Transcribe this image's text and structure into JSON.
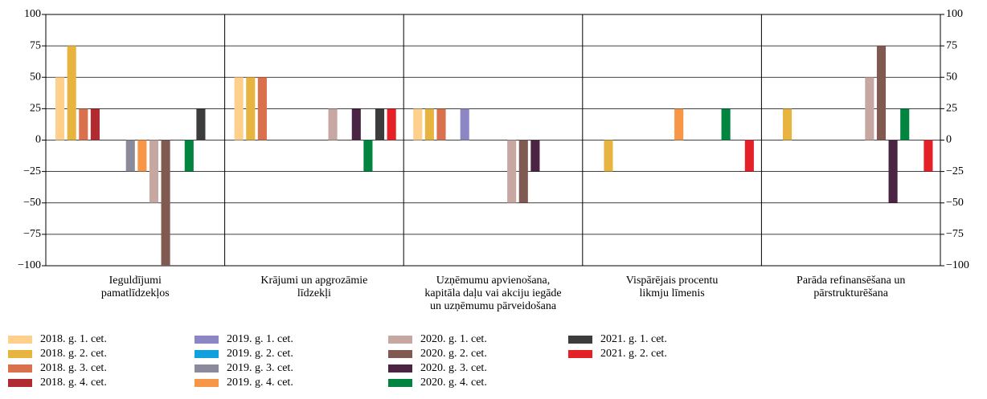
{
  "chart_data": {
    "type": "bar",
    "categories": [
      "Ieguldījumi\npamatlīdzekļos",
      "Krājumi un apgrozāmie\nlīdzekļi",
      "Uzņēmumu apvienošana,\nkapitāla daļu vai akciju iegāde\nun uzņēmumu pārveidošana",
      "Vispārējais procentu\nlikmju līmenis",
      "Parāda refinansēšana un\npārstrukturēšana"
    ],
    "series": [
      {
        "name": "2018. g. 1. cet.",
        "color": "#ffd08c",
        "values": [
          50,
          50,
          25,
          0,
          0
        ]
      },
      {
        "name": "2018. g. 2. cet.",
        "color": "#e8b440",
        "values": [
          75,
          50,
          25,
          -25,
          25
        ]
      },
      {
        "name": "2018. g. 3. cet.",
        "color": "#d8714c",
        "values": [
          25,
          50,
          25,
          0,
          0
        ]
      },
      {
        "name": "2018. g. 4. cet.",
        "color": "#b02a30",
        "values": [
          25,
          0,
          0,
          0,
          0
        ]
      },
      {
        "name": "2019. g. 1. cet.",
        "color": "#8c86c4",
        "values": [
          0,
          0,
          25,
          0,
          0
        ]
      },
      {
        "name": "2019. g. 2. cet.",
        "color": "#12a0dc",
        "values": [
          0,
          0,
          0,
          0,
          0
        ]
      },
      {
        "name": "2019. g. 3. cet.",
        "color": "#8a8a9c",
        "values": [
          -25,
          0,
          0,
          0,
          0
        ]
      },
      {
        "name": "2019. g. 4. cet.",
        "color": "#f79646",
        "values": [
          -25,
          0,
          0,
          25,
          0
        ]
      },
      {
        "name": "2020. g. 1. cet.",
        "color": "#c6a7a2",
        "values": [
          -50,
          25,
          -50,
          0,
          50
        ]
      },
      {
        "name": "2020. g. 2. cet.",
        "color": "#805a50",
        "values": [
          -100,
          0,
          -50,
          0,
          75
        ]
      },
      {
        "name": "2020. g. 3. cet.",
        "color": "#4a2442",
        "values": [
          0,
          25,
          -25,
          0,
          -50
        ]
      },
      {
        "name": "2020. g. 4. cet.",
        "color": "#00843f",
        "values": [
          -25,
          -25,
          0,
          25,
          25
        ]
      },
      {
        "name": "2021. g. 1. cet.",
        "color": "#3c3c3c",
        "values": [
          25,
          25,
          0,
          0,
          0
        ]
      },
      {
        "name": "2021. g. 2. cet.",
        "color": "#e52128",
        "values": [
          0,
          25,
          0,
          -25,
          -25
        ]
      }
    ],
    "ylim": [
      -100,
      100
    ],
    "yticks": [
      100,
      75,
      50,
      25,
      0,
      {
        "value": -25,
        "label": "−25"
      },
      {
        "value": -50,
        "label": "−50"
      },
      {
        "value": -75,
        "label": "−75"
      },
      {
        "value": -100,
        "label": "−100"
      }
    ],
    "y2lim": [
      -100,
      100
    ],
    "y2ticks": [
      100,
      75,
      50,
      25,
      0,
      {
        "value": -25,
        "label": "−25"
      },
      {
        "value": -50,
        "label": "−50"
      },
      {
        "value": -75,
        "label": "−75"
      },
      {
        "value": -100,
        "label": "−100"
      }
    ],
    "grid": true
  }
}
